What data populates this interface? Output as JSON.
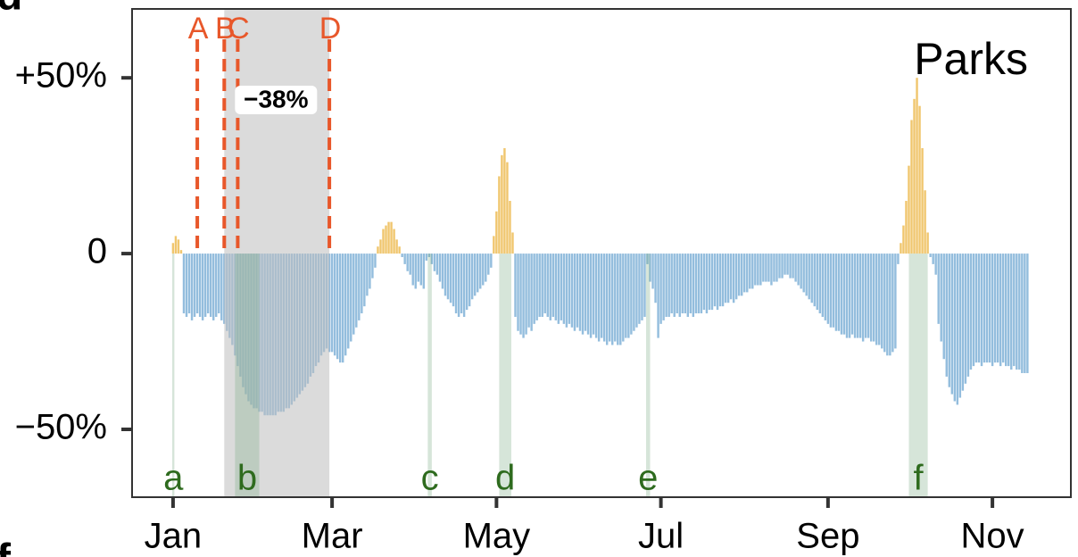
{
  "chart_data": {
    "type": "bar",
    "title": "Parks",
    "panel_labels": [
      "d",
      "f"
    ],
    "x": [
      0,
      1,
      2,
      3,
      4,
      5,
      6,
      7,
      8,
      9,
      10,
      11,
      12,
      13,
      14,
      15,
      16,
      17,
      18,
      19,
      20,
      21,
      22,
      23,
      24,
      25,
      26,
      27,
      28,
      29,
      30,
      31,
      32,
      33,
      34,
      35,
      36,
      37,
      38,
      39,
      40,
      41,
      42,
      43,
      44,
      45,
      46,
      47,
      48,
      49,
      50,
      51,
      52,
      53,
      54,
      55,
      56,
      57,
      58,
      59,
      60,
      61,
      62,
      63,
      64,
      65,
      66,
      67,
      68,
      69,
      70,
      71,
      72,
      73,
      74,
      75,
      76,
      77,
      78,
      79,
      80,
      81,
      82,
      83,
      84,
      85,
      86,
      87,
      88,
      89,
      90,
      91,
      92,
      93,
      94,
      95,
      96,
      97,
      98,
      99,
      100,
      101,
      102,
      103,
      104,
      105,
      106,
      107,
      108,
      109,
      110,
      111,
      112,
      113,
      114,
      115,
      116,
      117,
      118,
      119,
      120,
      121,
      122,
      123,
      124,
      125,
      126,
      127,
      128,
      129,
      130,
      131,
      132,
      133,
      134,
      135,
      136,
      137,
      138,
      139,
      140,
      141,
      142,
      143,
      144,
      145,
      146,
      147,
      148,
      149,
      150,
      151,
      152,
      153,
      154,
      155,
      156,
      157,
      158,
      159,
      160,
      161,
      162,
      163,
      164,
      165,
      166,
      167,
      168,
      169,
      170,
      171,
      172,
      173,
      174,
      175,
      176,
      177,
      178,
      179,
      180,
      181,
      182,
      183,
      184,
      185,
      186,
      187,
      188,
      189,
      190,
      191,
      192,
      193,
      194,
      195,
      196,
      197,
      198,
      199,
      200,
      201,
      202,
      203,
      204,
      205,
      206,
      207,
      208,
      209,
      210,
      211,
      212,
      213,
      214,
      215,
      216,
      217,
      218,
      219,
      220,
      221,
      222,
      223,
      224,
      225,
      226,
      227,
      228,
      229,
      230,
      231,
      232,
      233,
      234,
      235,
      236,
      237,
      238,
      239,
      240,
      241,
      242,
      243,
      244,
      245,
      246,
      247,
      248,
      249,
      250,
      251,
      252,
      253,
      254,
      255,
      256,
      257,
      258,
      259,
      260,
      261,
      262,
      263,
      264,
      265,
      266,
      267,
      268,
      269,
      270,
      271,
      272,
      273,
      274,
      275,
      276,
      277,
      278,
      279,
      280,
      281,
      282,
      283,
      284,
      285,
      286,
      287,
      288,
      289,
      290,
      291,
      292,
      293,
      294,
      295,
      296,
      297,
      298,
      299,
      300,
      301,
      302,
      303,
      304,
      305,
      306,
      307,
      308,
      309,
      310,
      311,
      312,
      313,
      314,
      315,
      316,
      317
    ],
    "values": [
      3,
      5,
      4,
      1,
      -17,
      -18,
      -17,
      -19,
      -18,
      -17,
      -18,
      -19,
      -18,
      -17,
      -18,
      -19,
      -18,
      -17,
      -19,
      -20,
      -22,
      -24,
      -26,
      -29,
      -32,
      -35,
      -38,
      -40,
      -42,
      -43,
      -44,
      -44,
      -45,
      -45,
      -46,
      -46,
      -46,
      -46,
      -46,
      -45,
      -45,
      -45,
      -44,
      -44,
      -43,
      -42,
      -41,
      -40,
      -39,
      -38,
      -37,
      -35,
      -34,
      -32,
      -31,
      -29,
      -28,
      -27,
      -28,
      -28,
      -29,
      -30,
      -31,
      -31,
      -29,
      -27,
      -25,
      -23,
      -21,
      -19,
      -17,
      -15,
      -12,
      -10,
      -7,
      -4,
      2,
      4,
      7,
      8,
      9,
      9,
      7,
      4,
      2,
      -1,
      -3,
      -5,
      -6,
      -9,
      -10,
      -8,
      -9,
      -10,
      -2,
      -1,
      -3,
      -5,
      -6,
      -8,
      -10,
      -12,
      -13,
      -14,
      -15,
      -17,
      -18,
      -17,
      -18,
      -16,
      -15,
      -13,
      -12,
      -11,
      -10,
      -9,
      -8,
      -6,
      -4,
      5,
      12,
      22,
      28,
      30,
      26,
      15,
      6,
      -18,
      -22,
      -23,
      -24,
      -23,
      -21,
      -22,
      -20,
      -19,
      -18,
      -18,
      -17,
      -18,
      -19,
      -18,
      -19,
      -20,
      -19,
      -20,
      -21,
      -20,
      -21,
      -22,
      -21,
      -22,
      -23,
      -22,
      -23,
      -24,
      -23,
      -24,
      -25,
      -24,
      -25,
      -26,
      -25,
      -26,
      -25,
      -26,
      -26,
      -25,
      -24,
      -24,
      -23,
      -22,
      -21,
      -20,
      -19,
      -18,
      -3,
      -8,
      -10,
      -14,
      -24,
      -20,
      -19,
      -18,
      -18,
      -17,
      -18,
      -17,
      -18,
      -17,
      -17,
      -18,
      -17,
      -18,
      -17,
      -17,
      -17,
      -16,
      -17,
      -16,
      -16,
      -15,
      -16,
      -15,
      -15,
      -14,
      -14,
      -13,
      -14,
      -13,
      -12,
      -12,
      -11,
      -11,
      -10,
      -10,
      -9,
      -9,
      -9,
      -8,
      -8,
      -8,
      -9,
      -8,
      -8,
      -7,
      -7,
      -6,
      -6,
      -7,
      -7,
      -8,
      -9,
      -10,
      -11,
      -12,
      -13,
      -14,
      -15,
      -16,
      -17,
      -18,
      -19,
      -20,
      -21,
      -21,
      -22,
      -22,
      -23,
      -23,
      -24,
      -24,
      -23,
      -24,
      -24,
      -24,
      -25,
      -24,
      -24,
      -25,
      -25,
      -26,
      -26,
      -27,
      -28,
      -29,
      -29,
      -28,
      -27,
      -3,
      3,
      8,
      15,
      25,
      38,
      44,
      50,
      42,
      30,
      18,
      6,
      -1,
      -3,
      -6,
      -20,
      -25,
      -30,
      -35,
      -38,
      -40,
      -42,
      -43,
      -41,
      -39,
      -37,
      -35,
      -33,
      -32,
      -31,
      -31,
      -32,
      -31,
      -31,
      -31,
      -32,
      -31,
      -31,
      -32,
      -31,
      -32,
      -32,
      -33,
      -32,
      -33,
      -33,
      -34,
      -34,
      -34
    ],
    "positive_color": "#f0c66e",
    "negative_color": "#93bddd",
    "xlim": [
      -15.2,
      333.1
    ],
    "ylim": [
      -69.3,
      69.6
    ],
    "xticks": [
      {
        "value": 0,
        "label": "Jan"
      },
      {
        "value": 59,
        "label": "Mar"
      },
      {
        "value": 120,
        "label": "May"
      },
      {
        "value": 181,
        "label": "Jul"
      },
      {
        "value": 243,
        "label": "Sep"
      },
      {
        "value": 304,
        "label": "Nov"
      }
    ],
    "yticks": [
      {
        "value": -50,
        "label": "−50%"
      },
      0,
      {
        "value": 50,
        "label": "+50%"
      }
    ],
    "events": [
      {
        "label": "A",
        "x": 9
      },
      {
        "label": "B",
        "x": 19
      },
      {
        "label": "C",
        "x": 24
      },
      {
        "label": "D",
        "x": 58
      }
    ],
    "event_color": "#e8572a",
    "shaded_span": {
      "x": [
        19,
        58
      ],
      "label": "−38%"
    },
    "highlights": [
      {
        "label": "a",
        "x": [
          -0.3,
          0.5
        ]
      },
      {
        "label": "b",
        "x": [
          23,
          32
        ]
      },
      {
        "label": "c",
        "x": [
          94.5,
          96
        ]
      },
      {
        "label": "d",
        "x": [
          121,
          125.5
        ]
      },
      {
        "label": "e",
        "x": [
          175.5,
          177
        ]
      },
      {
        "label": "f",
        "x": [
          273,
          280
        ]
      }
    ],
    "highlight_color": "#2e6b1e"
  }
}
